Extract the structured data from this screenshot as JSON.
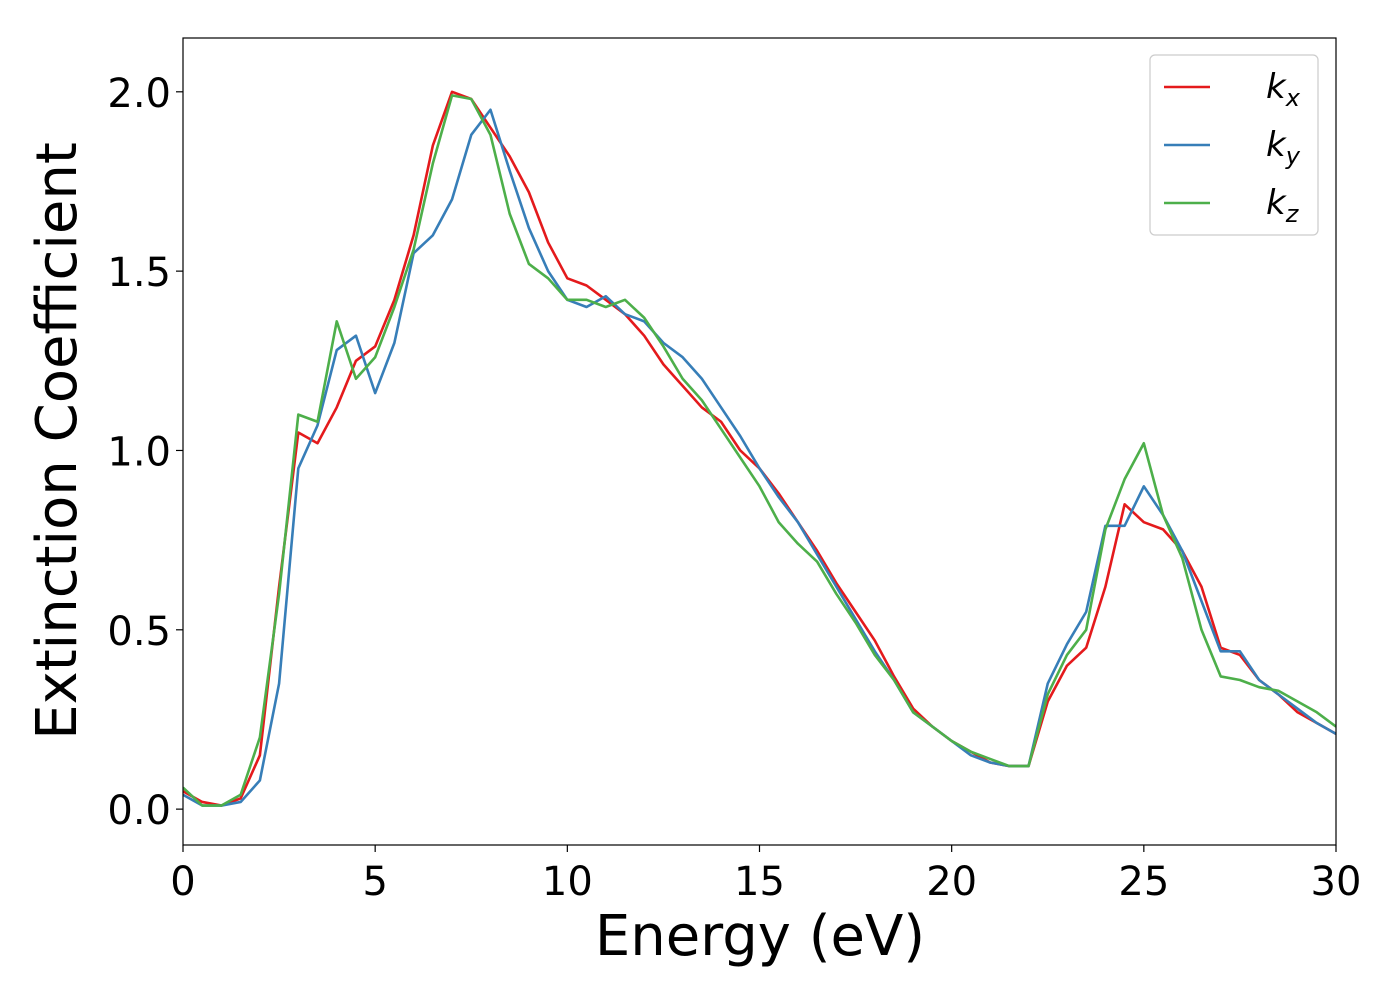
{
  "chart_data": {
    "type": "line",
    "xlabel": "Energy (eV)",
    "ylabel": "Extinction Coefficient",
    "x": [
      0,
      0.5,
      1,
      1.5,
      2,
      2.5,
      3,
      3.5,
      4,
      4.5,
      5,
      5.5,
      6,
      6.5,
      7,
      7.5,
      8,
      8.5,
      9,
      9.5,
      10,
      10.5,
      11,
      11.5,
      12,
      12.5,
      13,
      13.5,
      14,
      14.5,
      15,
      15.5,
      16,
      16.5,
      17,
      17.5,
      18,
      18.5,
      19,
      19.5,
      20,
      20.5,
      21,
      21.5,
      22,
      22.5,
      23,
      23.5,
      24,
      24.5,
      25,
      25.5,
      26,
      26.5,
      27,
      27.5,
      28,
      28.5,
      29,
      29.5,
      30
    ],
    "series": [
      {
        "name": "kx",
        "color": "#e41a1c",
        "values": [
          0.05,
          0.02,
          0.01,
          0.03,
          0.15,
          0.62,
          1.05,
          1.02,
          1.12,
          1.25,
          1.29,
          1.42,
          1.6,
          1.85,
          2.0,
          1.98,
          1.9,
          1.82,
          1.72,
          1.58,
          1.48,
          1.46,
          1.42,
          1.38,
          1.32,
          1.24,
          1.18,
          1.12,
          1.08,
          1.0,
          0.95,
          0.88,
          0.8,
          0.72,
          0.63,
          0.55,
          0.47,
          0.37,
          0.28,
          0.23,
          0.19,
          0.16,
          0.13,
          0.12,
          0.12,
          0.3,
          0.4,
          0.45,
          0.62,
          0.85,
          0.8,
          0.78,
          0.72,
          0.62,
          0.45,
          0.43,
          0.36,
          0.32,
          0.27,
          0.24,
          0.21
        ]
      },
      {
        "name": "ky",
        "color": "#377eb8",
        "values": [
          0.04,
          0.01,
          0.01,
          0.02,
          0.08,
          0.35,
          0.95,
          1.07,
          1.28,
          1.32,
          1.16,
          1.3,
          1.55,
          1.6,
          1.7,
          1.88,
          1.95,
          1.78,
          1.62,
          1.5,
          1.42,
          1.4,
          1.43,
          1.38,
          1.36,
          1.3,
          1.26,
          1.2,
          1.12,
          1.04,
          0.95,
          0.87,
          0.8,
          0.71,
          0.62,
          0.53,
          0.44,
          0.36,
          0.27,
          0.23,
          0.19,
          0.15,
          0.13,
          0.12,
          0.12,
          0.35,
          0.46,
          0.55,
          0.79,
          0.79,
          0.9,
          0.82,
          0.72,
          0.58,
          0.44,
          0.44,
          0.36,
          0.32,
          0.28,
          0.24,
          0.21
        ]
      },
      {
        "name": "kz",
        "color": "#4daf4a",
        "values": [
          0.06,
          0.01,
          0.01,
          0.04,
          0.2,
          0.6,
          1.1,
          1.08,
          1.36,
          1.2,
          1.26,
          1.4,
          1.56,
          1.8,
          1.99,
          1.98,
          1.88,
          1.66,
          1.52,
          1.48,
          1.42,
          1.42,
          1.4,
          1.42,
          1.37,
          1.29,
          1.2,
          1.14,
          1.06,
          0.98,
          0.9,
          0.8,
          0.74,
          0.69,
          0.6,
          0.52,
          0.43,
          0.36,
          0.27,
          0.23,
          0.19,
          0.16,
          0.14,
          0.12,
          0.12,
          0.32,
          0.43,
          0.5,
          0.78,
          0.92,
          1.02,
          0.82,
          0.7,
          0.5,
          0.37,
          0.36,
          0.34,
          0.33,
          0.3,
          0.27,
          0.23
        ]
      }
    ],
    "xlim": [
      0,
      30
    ],
    "xticks": [
      0,
      5,
      10,
      15,
      20,
      25,
      30
    ],
    "ylim": [
      -0.1,
      2.15
    ],
    "yticks": [
      {
        "value": 0,
        "label": "0.0"
      },
      0.5,
      {
        "value": 1,
        "label": "1.0"
      },
      1.5,
      {
        "value": 2,
        "label": "2.0"
      }
    ],
    "grid": false,
    "legend": "upper right"
  }
}
